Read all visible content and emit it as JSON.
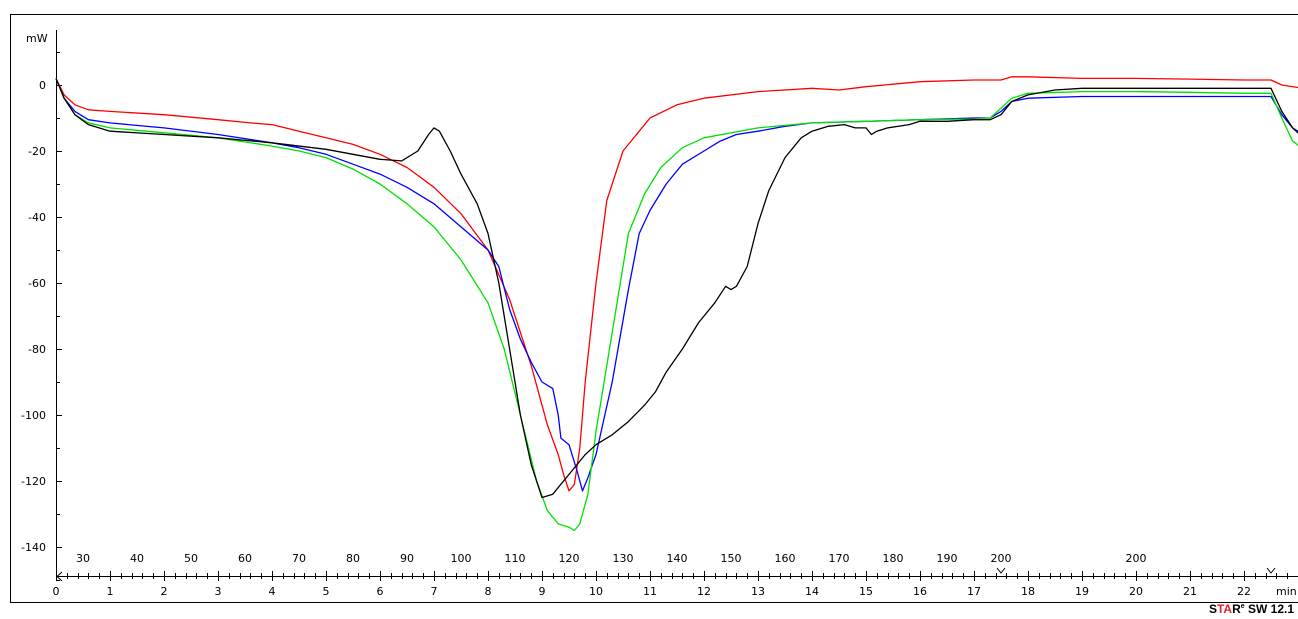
{
  "chart_data": {
    "type": "line",
    "title": "",
    "y_unit_label": "mW",
    "x_unit_label": "min",
    "ylim": [
      -150,
      12
    ],
    "xlim": [
      0,
      23.1
    ],
    "y_ticks": [
      0,
      -20,
      -40,
      -60,
      -80,
      -100,
      -120,
      -140
    ],
    "x_ticks": [
      0,
      1,
      2,
      3,
      4,
      5,
      6,
      7,
      8,
      9,
      10,
      11,
      12,
      13,
      14,
      15,
      16,
      17,
      18,
      19,
      20,
      21,
      22
    ],
    "temperature_labels": [
      {
        "min": 0.5,
        "label": "30"
      },
      {
        "min": 1.5,
        "label": "40"
      },
      {
        "min": 2.5,
        "label": "50"
      },
      {
        "min": 3.5,
        "label": "60"
      },
      {
        "min": 4.5,
        "label": "70"
      },
      {
        "min": 5.5,
        "label": "80"
      },
      {
        "min": 6.5,
        "label": "90"
      },
      {
        "min": 7.5,
        "label": "100"
      },
      {
        "min": 8.5,
        "label": "110"
      },
      {
        "min": 9.5,
        "label": "120"
      },
      {
        "min": 10.5,
        "label": "130"
      },
      {
        "min": 11.5,
        "label": "140"
      },
      {
        "min": 12.5,
        "label": "150"
      },
      {
        "min": 13.5,
        "label": "160"
      },
      {
        "min": 14.5,
        "label": "170"
      },
      {
        "min": 15.5,
        "label": "180"
      },
      {
        "min": 16.5,
        "label": "190"
      },
      {
        "min": 17.5,
        "label": "200"
      },
      {
        "min": 20.0,
        "label": "200"
      }
    ],
    "segment_markers_min": [
      0,
      17.5,
      22.5
    ],
    "grid": false,
    "series": [
      {
        "color": "#ff0000",
        "points": [
          [
            0,
            2
          ],
          [
            0.15,
            -3
          ],
          [
            0.35,
            -6
          ],
          [
            0.6,
            -7.5
          ],
          [
            1,
            -8
          ],
          [
            2,
            -9
          ],
          [
            3,
            -10.5
          ],
          [
            3.6,
            -11.5
          ],
          [
            4,
            -12
          ],
          [
            4.5,
            -14
          ],
          [
            5,
            -16
          ],
          [
            5.5,
            -18
          ],
          [
            6,
            -21
          ],
          [
            6.5,
            -25
          ],
          [
            7,
            -31
          ],
          [
            7.5,
            -39
          ],
          [
            8,
            -50
          ],
          [
            8.4,
            -65
          ],
          [
            8.8,
            -85
          ],
          [
            9.1,
            -103
          ],
          [
            9.3,
            -112
          ],
          [
            9.4,
            -118
          ],
          [
            9.5,
            -123
          ],
          [
            9.6,
            -121
          ],
          [
            9.7,
            -110
          ],
          [
            9.8,
            -90
          ],
          [
            10,
            -60
          ],
          [
            10.2,
            -35
          ],
          [
            10.5,
            -20
          ],
          [
            11,
            -10
          ],
          [
            11.5,
            -6
          ],
          [
            12,
            -4
          ],
          [
            13,
            -2
          ],
          [
            14,
            -1
          ],
          [
            14.5,
            -1.5
          ],
          [
            15,
            -0.5
          ],
          [
            16,
            1
          ],
          [
            17,
            1.5
          ],
          [
            17.5,
            1.5
          ],
          [
            17.7,
            2.5
          ],
          [
            18,
            2.5
          ],
          [
            19,
            2
          ],
          [
            20,
            2
          ],
          [
            21,
            1.8
          ],
          [
            22,
            1.5
          ],
          [
            22.5,
            1.5
          ],
          [
            22.7,
            0
          ],
          [
            23.1,
            -1
          ]
        ]
      },
      {
        "color": "#0000ff",
        "points": [
          [
            0,
            2
          ],
          [
            0.15,
            -4
          ],
          [
            0.35,
            -8
          ],
          [
            0.6,
            -10.5
          ],
          [
            1,
            -11.5
          ],
          [
            2,
            -13
          ],
          [
            3,
            -15
          ],
          [
            4,
            -17.5
          ],
          [
            4.5,
            -19
          ],
          [
            5,
            -21
          ],
          [
            5.5,
            -24
          ],
          [
            6,
            -27
          ],
          [
            6.5,
            -31
          ],
          [
            7,
            -36
          ],
          [
            7.5,
            -43
          ],
          [
            8,
            -50
          ],
          [
            8.2,
            -55
          ],
          [
            8.4,
            -68
          ],
          [
            8.6,
            -77
          ],
          [
            8.8,
            -84
          ],
          [
            9,
            -90
          ],
          [
            9.2,
            -92
          ],
          [
            9.3,
            -100
          ],
          [
            9.35,
            -107
          ],
          [
            9.5,
            -109
          ],
          [
            9.65,
            -117
          ],
          [
            9.75,
            -123
          ],
          [
            9.85,
            -119
          ],
          [
            10,
            -112
          ],
          [
            10.3,
            -90
          ],
          [
            10.6,
            -62
          ],
          [
            10.8,
            -45
          ],
          [
            11,
            -38
          ],
          [
            11.3,
            -30
          ],
          [
            11.6,
            -24
          ],
          [
            12,
            -20
          ],
          [
            12.3,
            -17
          ],
          [
            12.6,
            -15
          ],
          [
            13,
            -14
          ],
          [
            13.5,
            -12.5
          ],
          [
            14,
            -11.5
          ],
          [
            15,
            -11
          ],
          [
            16,
            -10.5
          ],
          [
            17,
            -10
          ],
          [
            17.3,
            -10
          ],
          [
            17.5,
            -8
          ],
          [
            17.7,
            -5
          ],
          [
            18,
            -4
          ],
          [
            19,
            -3.5
          ],
          [
            20,
            -3.5
          ],
          [
            21,
            -3.5
          ],
          [
            22,
            -3.5
          ],
          [
            22.5,
            -3.5
          ],
          [
            22.7,
            -9
          ],
          [
            22.9,
            -13
          ],
          [
            23.1,
            -15
          ]
        ]
      },
      {
        "color": "#00e000",
        "points": [
          [
            0,
            2
          ],
          [
            0.15,
            -4
          ],
          [
            0.35,
            -9
          ],
          [
            0.6,
            -11.5
          ],
          [
            1,
            -13
          ],
          [
            2,
            -14.5
          ],
          [
            3,
            -16
          ],
          [
            4,
            -18.5
          ],
          [
            4.5,
            -20
          ],
          [
            5,
            -22
          ],
          [
            5.5,
            -25.5
          ],
          [
            6,
            -30
          ],
          [
            6.5,
            -36
          ],
          [
            7,
            -43
          ],
          [
            7.5,
            -53
          ],
          [
            8,
            -66
          ],
          [
            8.3,
            -80
          ],
          [
            8.6,
            -100
          ],
          [
            8.9,
            -120
          ],
          [
            9.1,
            -129
          ],
          [
            9.3,
            -133
          ],
          [
            9.5,
            -134
          ],
          [
            9.6,
            -135
          ],
          [
            9.7,
            -133
          ],
          [
            9.85,
            -124
          ],
          [
            10,
            -105
          ],
          [
            10.3,
            -75
          ],
          [
            10.6,
            -45
          ],
          [
            10.9,
            -33
          ],
          [
            11.2,
            -25
          ],
          [
            11.6,
            -19
          ],
          [
            12,
            -16
          ],
          [
            13,
            -13
          ],
          [
            14,
            -11.5
          ],
          [
            15,
            -11
          ],
          [
            16,
            -10.5
          ],
          [
            17,
            -10.3
          ],
          [
            17.3,
            -10
          ],
          [
            17.5,
            -7
          ],
          [
            17.7,
            -4
          ],
          [
            18,
            -2.5
          ],
          [
            19,
            -2
          ],
          [
            20,
            -2
          ],
          [
            21,
            -2.2
          ],
          [
            22,
            -2.5
          ],
          [
            22.5,
            -2.5
          ],
          [
            22.7,
            -10
          ],
          [
            22.9,
            -17
          ],
          [
            23.1,
            -19.5
          ]
        ]
      },
      {
        "color": "#000000",
        "points": [
          [
            0,
            2
          ],
          [
            0.15,
            -4
          ],
          [
            0.35,
            -9
          ],
          [
            0.6,
            -12
          ],
          [
            1,
            -14
          ],
          [
            2,
            -15
          ],
          [
            3,
            -16
          ],
          [
            4,
            -17.5
          ],
          [
            5,
            -19.5
          ],
          [
            5.5,
            -21
          ],
          [
            6,
            -22.5
          ],
          [
            6.4,
            -23
          ],
          [
            6.7,
            -20
          ],
          [
            6.9,
            -15
          ],
          [
            7,
            -13
          ],
          [
            7.1,
            -14
          ],
          [
            7.3,
            -20
          ],
          [
            7.5,
            -27
          ],
          [
            7.8,
            -36
          ],
          [
            8,
            -45
          ],
          [
            8.2,
            -60
          ],
          [
            8.4,
            -80
          ],
          [
            8.6,
            -100
          ],
          [
            8.8,
            -115
          ],
          [
            9,
            -125
          ],
          [
            9.2,
            -124
          ],
          [
            9.5,
            -118
          ],
          [
            9.8,
            -112
          ],
          [
            10,
            -109
          ],
          [
            10.3,
            -106
          ],
          [
            10.6,
            -102
          ],
          [
            10.9,
            -97
          ],
          [
            11.1,
            -93
          ],
          [
            11.3,
            -87
          ],
          [
            11.6,
            -80
          ],
          [
            11.9,
            -72
          ],
          [
            12.2,
            -66
          ],
          [
            12.4,
            -61
          ],
          [
            12.5,
            -62
          ],
          [
            12.6,
            -61
          ],
          [
            12.8,
            -55
          ],
          [
            13,
            -42
          ],
          [
            13.2,
            -32
          ],
          [
            13.5,
            -22
          ],
          [
            13.8,
            -16
          ],
          [
            14,
            -14
          ],
          [
            14.3,
            -12.5
          ],
          [
            14.6,
            -12
          ],
          [
            14.8,
            -13
          ],
          [
            15,
            -13
          ],
          [
            15.1,
            -15
          ],
          [
            15.2,
            -14
          ],
          [
            15.4,
            -13
          ],
          [
            15.8,
            -12
          ],
          [
            16,
            -11
          ],
          [
            16.5,
            -11
          ],
          [
            17,
            -10.5
          ],
          [
            17.3,
            -10.5
          ],
          [
            17.5,
            -9
          ],
          [
            17.7,
            -5
          ],
          [
            18,
            -3
          ],
          [
            18.5,
            -1.5
          ],
          [
            19,
            -1
          ],
          [
            20,
            -1
          ],
          [
            21,
            -1
          ],
          [
            22,
            -1
          ],
          [
            22.5,
            -1
          ],
          [
            22.7,
            -8
          ],
          [
            22.9,
            -13
          ],
          [
            23.1,
            -16
          ]
        ]
      }
    ]
  },
  "brand": {
    "s": "S",
    "ta": "TA",
    "r": "R",
    "reg": "e",
    "rest": " SW 12.1"
  }
}
